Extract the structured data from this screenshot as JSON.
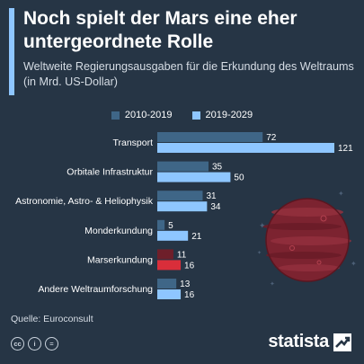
{
  "header": {
    "title": "Noch spielt der Mars eine eher untergeordnete Rolle",
    "subtitle": "Weltweite Regierungsausgaben für die Erkundung des Weltraums (in Mrd. US-Dollar)"
  },
  "legend": {
    "items": [
      {
        "label": "2010-2019",
        "color": "#3f6687"
      },
      {
        "label": "2019-2029",
        "color": "#8ec6ff"
      }
    ]
  },
  "chart_data": {
    "type": "bar",
    "orientation": "horizontal",
    "categories": [
      "Transport",
      "Orbitale Infrastruktur",
      "Astronomie, Astro- & Heliophysik",
      "Monderkundung",
      "Marserkundung",
      "Andere Weltraumforschung"
    ],
    "series": [
      {
        "name": "2010-2019",
        "values": [
          72,
          35,
          31,
          5,
          11,
          13
        ],
        "color": "#3f6687"
      },
      {
        "name": "2019-2029",
        "values": [
          121,
          50,
          34,
          21,
          16,
          16
        ],
        "color": "#8ec6ff"
      }
    ],
    "highlight": {
      "category": "Marserkundung",
      "colors": [
        "#6e1f2a",
        "#d92e3a"
      ]
    },
    "xlim": [
      0,
      121
    ],
    "grid": false,
    "legend_position": "top"
  },
  "footer": {
    "source": "Quelle: Euroconsult",
    "cc_icons": [
      "cc",
      "by",
      "equals"
    ],
    "brand": "statista"
  },
  "colors": {
    "background": "#263545",
    "accent": "#8ec6ff",
    "mars": "#8b2a36"
  }
}
